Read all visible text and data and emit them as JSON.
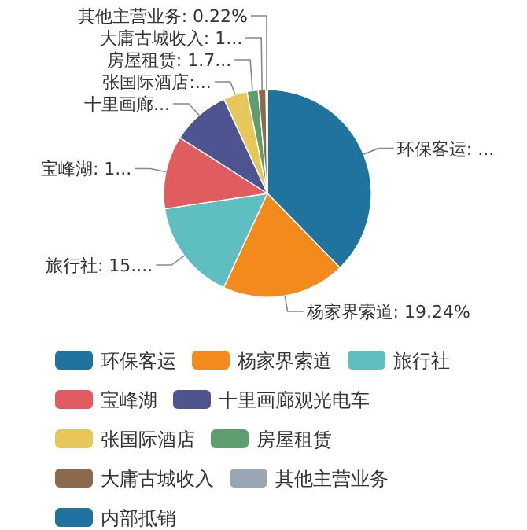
{
  "chart_data": {
    "type": "pie",
    "categories": [
      "环保客运",
      "杨家界索道",
      "旅行社",
      "宝峰湖",
      "十里画廊观光电车",
      "张国际酒店",
      "房屋租赁",
      "大庸古城收入",
      "其他主营业务",
      "内部抵销"
    ],
    "values": [
      37.69,
      19.24,
      15.7,
      11.4,
      9.1,
      3.7,
      1.75,
      1.2,
      0.22,
      null
    ],
    "colors": [
      "#21739f",
      "#f28a1c",
      "#5fbfc0",
      "#e05c5e",
      "#4e5490",
      "#e6c85a",
      "#5e9e6e",
      "#8c6a4e",
      "#9aa6b4",
      "#21739f"
    ],
    "value_labels": [
      "环保客运: ...",
      "杨家界索道: 19.24%",
      "旅行社: 15....",
      "宝峰湖: 1...",
      "十里画廊...",
      "张国际酒店:...",
      "房屋租赁: 1.7...",
      "大庸古城收入: 1...",
      "其他主营业务: 0.22%",
      null
    ],
    "legend": "bottom"
  }
}
